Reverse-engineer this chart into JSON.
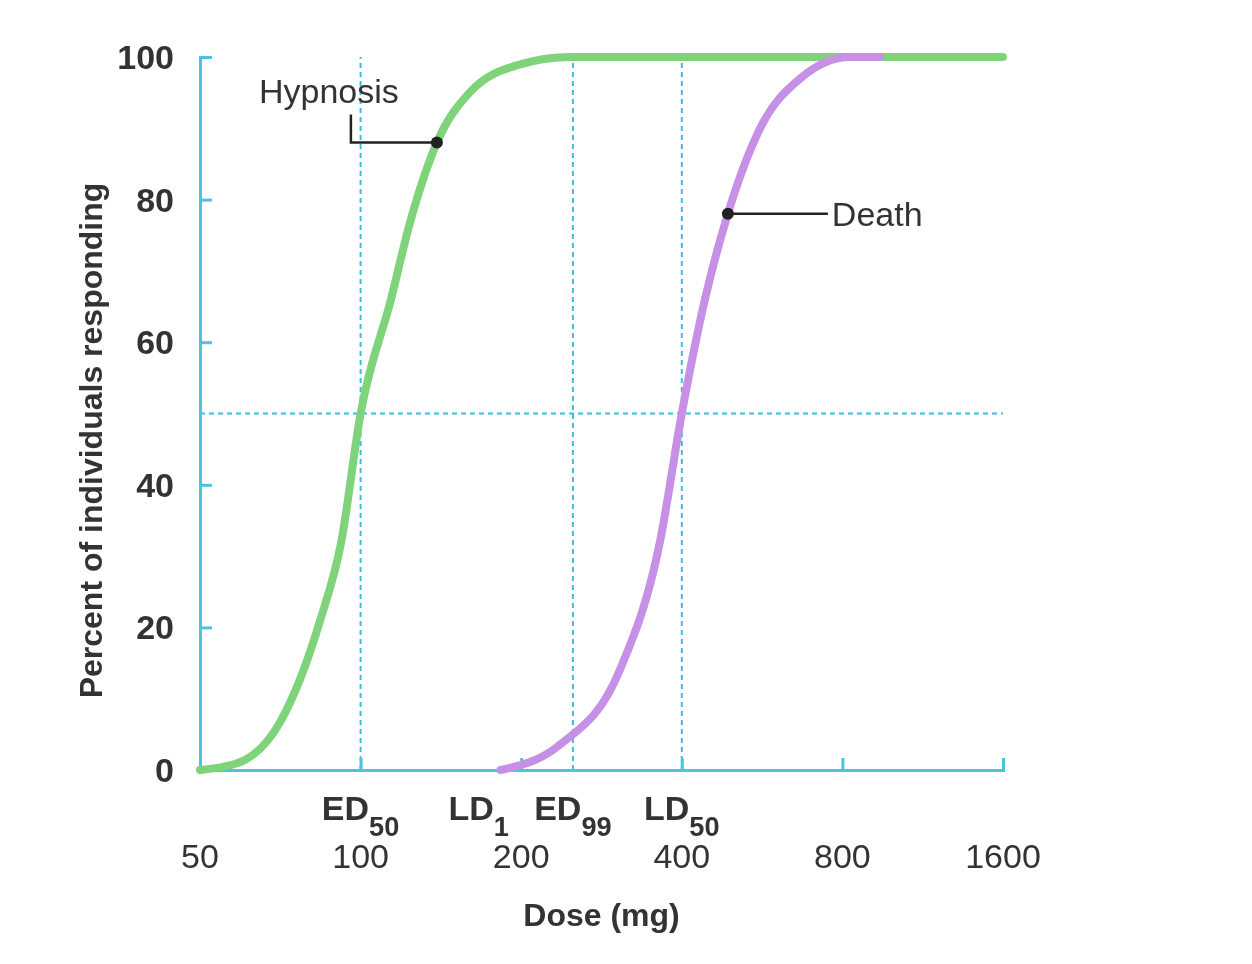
{
  "chart_data": {
    "type": "line",
    "xlabel": "Dose (mg)",
    "ylabel": "Percent of individuals responding",
    "log": "x",
    "xlim": [
      50,
      1600
    ],
    "xticks": [
      50,
      100,
      200,
      400,
      800,
      1600
    ],
    "ylim": [
      0,
      100
    ],
    "yticks": [
      0,
      20,
      40,
      60,
      80,
      100
    ],
    "grid": false,
    "legend": "right",
    "marker": "none",
    "line_style": "solid",
    "series": [
      {
        "name": "Hypnosis",
        "color": "#7fd47b",
        "x": [
          50,
          59,
          71,
          84,
          92,
          100,
          114,
          124,
          139,
          160,
          200,
          247,
          1600
        ],
        "values": [
          0,
          1,
          7,
          21,
          32,
          50,
          66,
          77,
          88,
          95,
          99,
          100,
          100
        ]
      },
      {
        "name": "Death",
        "color": "#c690e6",
        "x": [
          183,
          236,
          306,
          364,
          400,
          442,
          488,
          561,
          667,
          828,
          941
        ],
        "values": [
          0,
          3.5,
          14,
          32,
          50,
          66,
          78,
          90,
          97,
          100,
          100
        ]
      }
    ],
    "ref_lines": [
      {
        "axis": "y",
        "value": 50,
        "color": "#3bbde0",
        "line_style": "dashed"
      },
      {
        "axis": "x",
        "value": 100,
        "label": "ED$_{50}$",
        "color": "#3bbde0",
        "line_style": "dashed"
      },
      {
        "axis": "x",
        "value": 250,
        "label": "ED$_{99}$",
        "color": "#3bbde0",
        "line_style": "dashed"
      },
      {
        "axis": "x",
        "value": 400,
        "label": "LD$_{50}$",
        "color": "#3bbde0",
        "line_style": "dashed"
      }
    ],
    "annotations": [
      "LD$_{1}$"
    ]
  }
}
